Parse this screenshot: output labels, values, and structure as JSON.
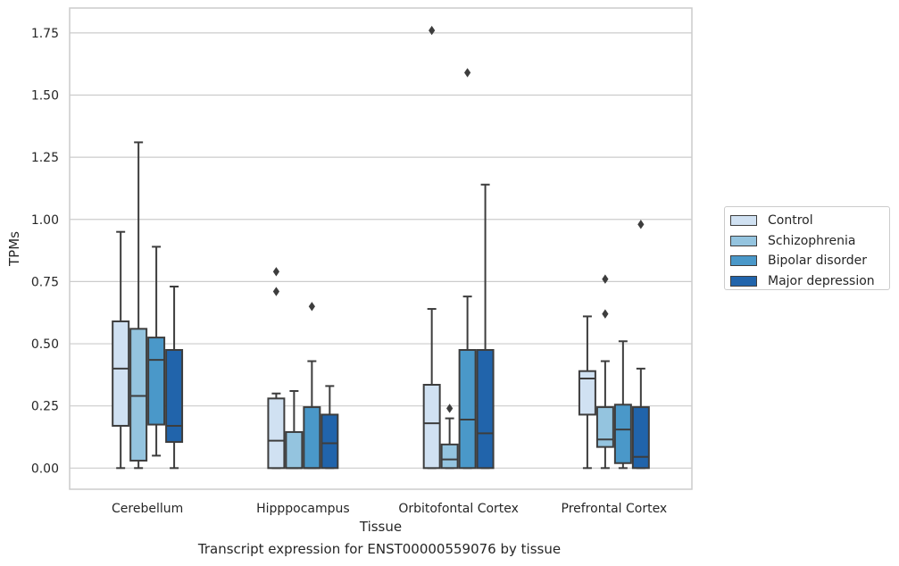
{
  "chart_data": {
    "type": "box",
    "title": "",
    "caption": "Transcript expression for ENST00000559076 by tissue",
    "xlabel": "Tissue",
    "ylabel": "TPMs",
    "ylim": [
      -0.085,
      1.85
    ],
    "yticks": [
      0.0,
      0.25,
      0.5,
      0.75,
      1.0,
      1.25,
      1.5,
      1.75
    ],
    "ytick_labels": [
      "0.00",
      "0.25",
      "0.50",
      "0.75",
      "1.00",
      "1.25",
      "1.50",
      "1.75"
    ],
    "grid": true,
    "legend_position": "right",
    "categories": [
      "Cerebellum",
      "Hipppocampus",
      "Orbitofontal Cortex",
      "Prefrontal Cortex"
    ],
    "series": [
      {
        "name": "Control",
        "color": "#d0e1f2",
        "boxes": [
          {
            "min": 0.0,
            "q1": 0.17,
            "median": 0.4,
            "q3": 0.59,
            "max": 0.95,
            "outliers": []
          },
          {
            "min": 0.0,
            "q1": 0.0,
            "median": 0.11,
            "q3": 0.28,
            "max": 0.3,
            "outliers": [
              0.71,
              0.79
            ]
          },
          {
            "min": 0.0,
            "q1": 0.0,
            "median": 0.18,
            "q3": 0.335,
            "max": 0.64,
            "outliers": [
              1.76
            ]
          },
          {
            "min": 0.0,
            "q1": 0.215,
            "median": 0.36,
            "q3": 0.39,
            "max": 0.61,
            "outliers": []
          }
        ]
      },
      {
        "name": "Schizophrenia",
        "color": "#94c4df",
        "boxes": [
          {
            "min": 0.0,
            "q1": 0.03,
            "median": 0.29,
            "q3": 0.56,
            "max": 1.31,
            "outliers": []
          },
          {
            "min": 0.0,
            "q1": 0.0,
            "median": 0.0,
            "q3": 0.145,
            "max": 0.31,
            "outliers": []
          },
          {
            "min": 0.0,
            "q1": 0.0,
            "median": 0.035,
            "q3": 0.095,
            "max": 0.2,
            "outliers": [
              0.24
            ]
          },
          {
            "min": 0.0,
            "q1": 0.085,
            "median": 0.115,
            "q3": 0.245,
            "max": 0.43,
            "outliers": [
              0.62,
              0.76
            ]
          }
        ]
      },
      {
        "name": "Bipolar disorder",
        "color": "#4a98c9",
        "boxes": [
          {
            "min": 0.05,
            "q1": 0.175,
            "median": 0.435,
            "q3": 0.525,
            "max": 0.89,
            "outliers": []
          },
          {
            "min": 0.0,
            "q1": 0.0,
            "median": 0.0,
            "q3": 0.245,
            "max": 0.43,
            "outliers": [
              0.65
            ]
          },
          {
            "min": 0.0,
            "q1": 0.0,
            "median": 0.195,
            "q3": 0.475,
            "max": 0.69,
            "outliers": [
              1.59
            ]
          },
          {
            "min": 0.0,
            "q1": 0.02,
            "median": 0.155,
            "q3": 0.255,
            "max": 0.51,
            "outliers": []
          }
        ]
      },
      {
        "name": "Major depression",
        "color": "#2164ab",
        "boxes": [
          {
            "min": 0.0,
            "q1": 0.105,
            "median": 0.17,
            "q3": 0.475,
            "max": 0.73,
            "outliers": []
          },
          {
            "min": 0.0,
            "q1": 0.0,
            "median": 0.1,
            "q3": 0.215,
            "max": 0.33,
            "outliers": []
          },
          {
            "min": 0.0,
            "q1": 0.0,
            "median": 0.14,
            "q3": 0.475,
            "max": 1.14,
            "outliers": []
          },
          {
            "min": 0.0,
            "q1": 0.0,
            "median": 0.045,
            "q3": 0.245,
            "max": 0.4,
            "outliers": [
              0.98
            ]
          }
        ]
      }
    ]
  }
}
